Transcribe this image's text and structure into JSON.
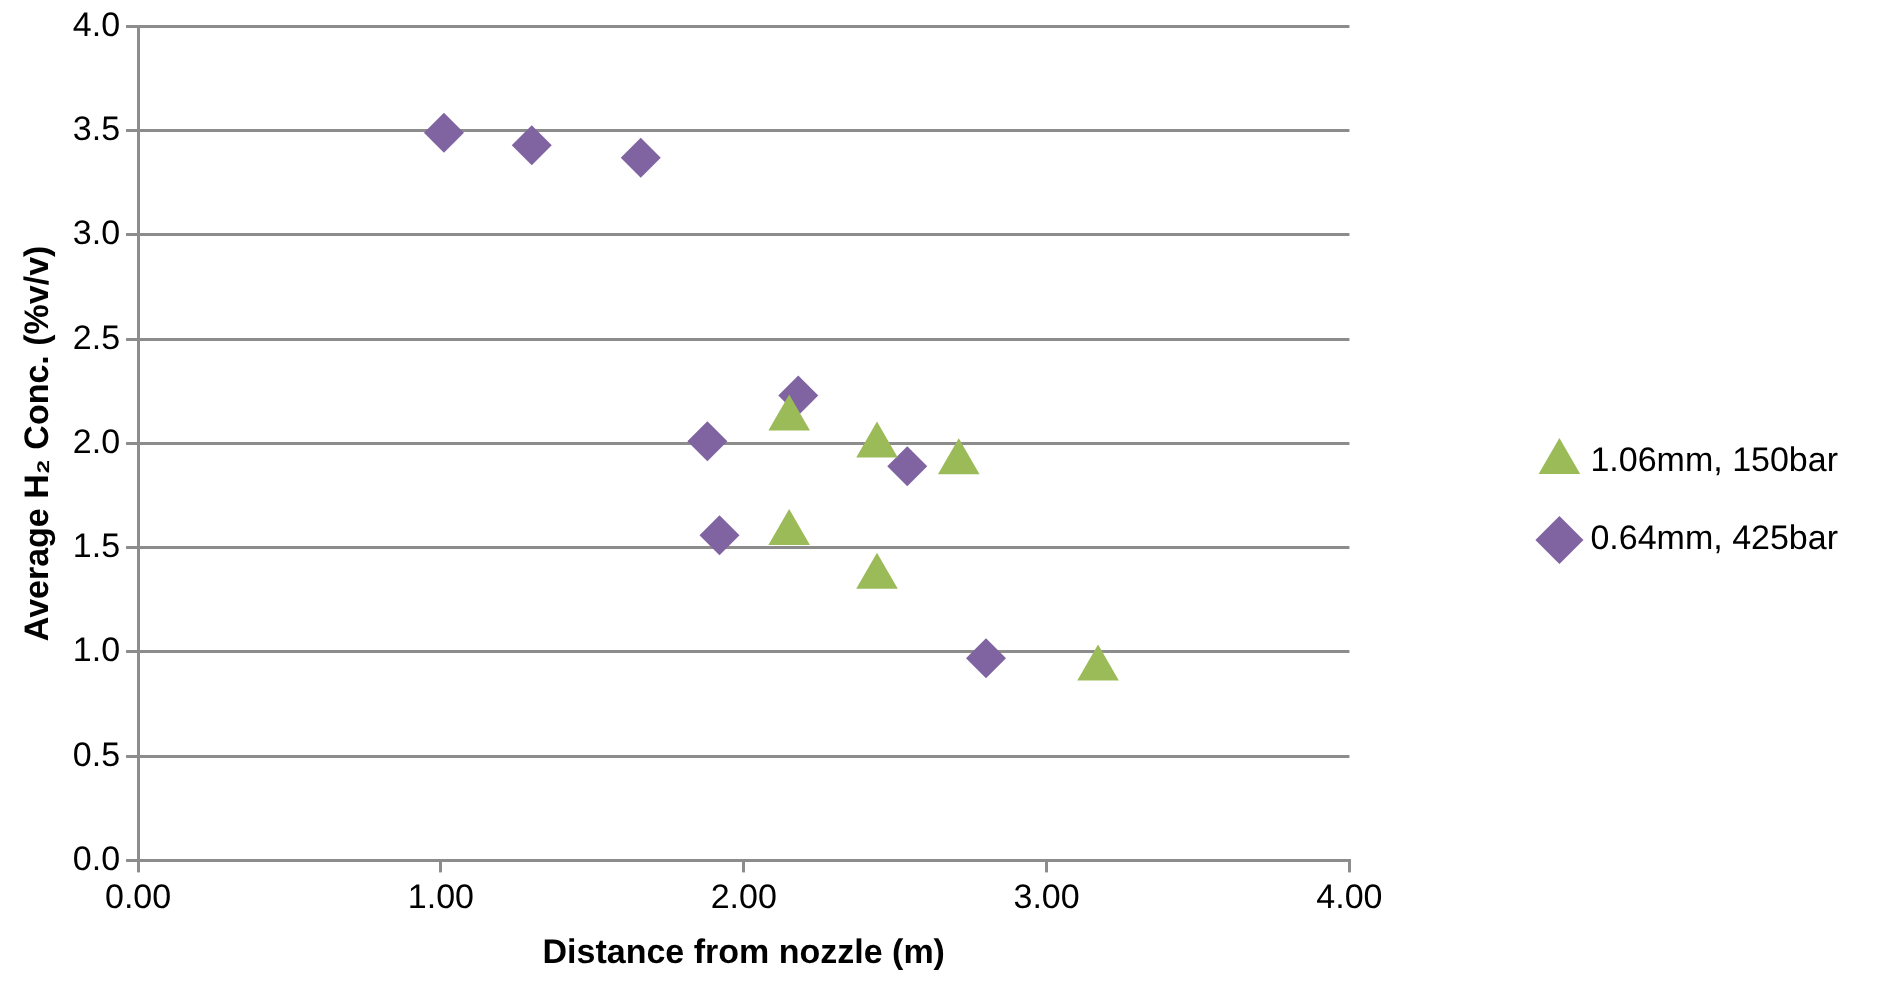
{
  "chart_data": {
    "type": "scatter",
    "xlabel": "Distance from nozzle (m)",
    "ylabel": "Average H₂ Conc. (%v/v)",
    "xlim": [
      0,
      4
    ],
    "xticks": [
      {
        "value": 0,
        "label": "0.00"
      },
      {
        "value": 1,
        "label": "1.00"
      },
      {
        "value": 2,
        "label": "2.00"
      },
      {
        "value": 3,
        "label": "3.00"
      },
      {
        "value": 4,
        "label": "4.00"
      }
    ],
    "ylim": [
      0,
      4
    ],
    "yticks": [
      {
        "value": 0,
        "label": "0.0"
      },
      {
        "value": 0.5,
        "label": "0.5"
      },
      {
        "value": 1,
        "label": "1.0"
      },
      {
        "value": 1.5,
        "label": "1.5"
      },
      {
        "value": 2,
        "label": "2.0"
      },
      {
        "value": 2.5,
        "label": "2.5"
      },
      {
        "value": 3,
        "label": "3.0"
      },
      {
        "value": 3.5,
        "label": "3.5"
      },
      {
        "value": 4,
        "label": "4.0"
      }
    ],
    "grid": "y",
    "legend": "right",
    "series": [
      {
        "name": "1.06mm, 150bar",
        "color": "#9bbb59",
        "marker": "triangle",
        "x": [
          2.15,
          2.44,
          2.71,
          2.15,
          2.44,
          3.17
        ],
        "values": [
          2.12,
          1.99,
          1.91,
          1.57,
          1.36,
          0.92
        ]
      },
      {
        "name": "0.64mm, 425bar",
        "color": "#8064a2",
        "marker": "diamond",
        "x": [
          1.01,
          1.3,
          1.66,
          1.88,
          1.92,
          2.18,
          2.54,
          2.8
        ],
        "values": [
          3.49,
          3.43,
          3.37,
          2.01,
          1.56,
          2.23,
          1.89,
          0.97
        ]
      }
    ]
  }
}
